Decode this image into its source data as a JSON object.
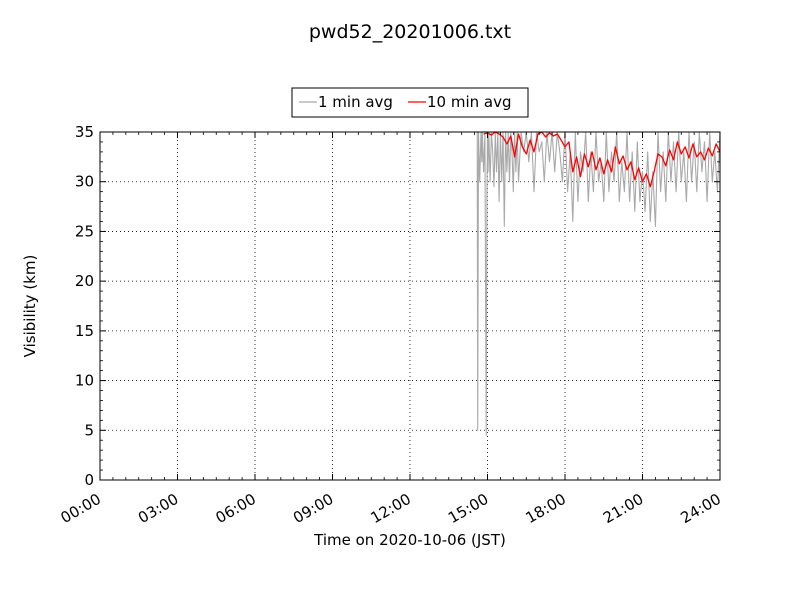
{
  "chart_data": {
    "type": "line",
    "title": "pwd52_20201006.txt",
    "xlabel": "Time on 2020-10-06 (JST)",
    "ylabel": "Visibility (km)",
    "xlim": [
      0,
      24
    ],
    "ylim": [
      0,
      35
    ],
    "xtick_values": [
      0,
      3,
      6,
      9,
      12,
      15,
      18,
      21,
      24
    ],
    "xtick_labels": [
      "00:00",
      "03:00",
      "06:00",
      "09:00",
      "12:00",
      "15:00",
      "18:00",
      "21:00",
      "24:00"
    ],
    "ytick_values": [
      0,
      5,
      10,
      15,
      20,
      25,
      30,
      35
    ],
    "ytick_labels": [
      "0",
      "5",
      "10",
      "15",
      "20",
      "25",
      "30",
      "35"
    ],
    "grid": true,
    "legend_position": "top-center",
    "series": [
      {
        "name": "1 min avg",
        "color": "#a9a9a9",
        "x": [
          14.6,
          14.62,
          14.65,
          14.7,
          14.75,
          14.78,
          14.8,
          14.85,
          14.9,
          14.95,
          14.98,
          15.0,
          15.02,
          15.05,
          15.1,
          15.15,
          15.2,
          15.25,
          15.3,
          15.35,
          15.4,
          15.45,
          15.5,
          15.55,
          15.6,
          15.65,
          15.7,
          15.75,
          15.8,
          15.85,
          15.9,
          15.95,
          16.0,
          16.05,
          16.1,
          16.15,
          16.2,
          16.3,
          16.4,
          16.5,
          16.6,
          16.7,
          16.8,
          16.9,
          17.0,
          17.1,
          17.2,
          17.3,
          17.4,
          17.5,
          17.6,
          17.7,
          17.8,
          17.9,
          18.0,
          18.1,
          18.2,
          18.3,
          18.4,
          18.5,
          18.6,
          18.7,
          18.8,
          18.9,
          19.0,
          19.1,
          19.2,
          19.3,
          19.4,
          19.5,
          19.6,
          19.7,
          19.8,
          19.9,
          20.0,
          20.1,
          20.2,
          20.3,
          20.4,
          20.5,
          20.6,
          20.7,
          20.8,
          20.9,
          21.0,
          21.1,
          21.2,
          21.3,
          21.4,
          21.5,
          21.6,
          21.7,
          21.8,
          21.9,
          22.0,
          22.1,
          22.2,
          22.3,
          22.4,
          22.5,
          22.6,
          22.7,
          22.8,
          22.9,
          23.0,
          23.1,
          23.2,
          23.3,
          23.4,
          23.5,
          23.6,
          23.7,
          23.8,
          23.9,
          24.0
        ],
        "y": [
          35,
          5,
          35,
          30,
          35,
          32,
          35,
          31,
          35,
          4.5,
          29,
          35,
          31,
          35,
          30,
          35,
          33,
          29.5,
          35,
          31,
          35,
          28,
          35,
          30,
          35,
          25.5,
          35,
          31,
          35,
          30,
          35,
          33,
          29,
          35,
          31,
          35,
          30,
          35,
          33,
          35,
          32,
          35,
          29,
          35,
          33,
          34,
          30,
          35,
          32,
          35,
          31,
          35,
          33,
          30,
          35,
          29,
          33,
          26,
          35,
          28,
          33,
          31,
          35,
          28,
          33,
          29,
          35,
          30,
          32,
          28,
          35,
          29,
          33,
          30,
          35,
          28,
          32,
          29,
          35,
          28,
          33,
          27,
          34,
          28,
          31,
          27,
          33,
          26,
          31,
          25.5,
          35,
          29,
          33,
          28,
          35,
          30,
          34,
          29,
          35,
          30,
          33,
          28,
          35,
          30,
          34,
          29,
          35,
          31,
          34,
          28,
          35,
          30,
          33,
          29,
          35
        ]
      },
      {
        "name": "10 min avg",
        "color": "#ff0000",
        "x": [
          14.85,
          15.0,
          15.15,
          15.3,
          15.45,
          15.6,
          15.75,
          15.9,
          16.05,
          16.2,
          16.35,
          16.5,
          16.65,
          16.8,
          16.95,
          17.1,
          17.25,
          17.4,
          17.55,
          17.7,
          17.85,
          18.0,
          18.15,
          18.3,
          18.45,
          18.6,
          18.75,
          18.9,
          19.05,
          19.2,
          19.35,
          19.5,
          19.65,
          19.8,
          19.95,
          20.1,
          20.25,
          20.4,
          20.55,
          20.7,
          20.85,
          21.0,
          21.15,
          21.3,
          21.45,
          21.6,
          21.75,
          21.9,
          22.05,
          22.2,
          22.35,
          22.5,
          22.65,
          22.8,
          22.95,
          23.1,
          23.25,
          23.4,
          23.55,
          23.7,
          23.85,
          24.0
        ],
        "y": [
          34.8,
          34.9,
          34.7,
          35,
          34.8,
          34.5,
          33.8,
          34.6,
          32.5,
          34.8,
          33.5,
          32.8,
          34.2,
          33.0,
          34.8,
          35,
          34.5,
          34.9,
          34.6,
          34.8,
          34.2,
          33.5,
          34.0,
          31.0,
          32.5,
          30.5,
          32.8,
          31.5,
          33.0,
          31.2,
          32.4,
          30.8,
          32.2,
          31.0,
          33.5,
          31.8,
          32.6,
          31.2,
          32.0,
          30.2,
          31.4,
          30.0,
          30.8,
          29.5,
          31.0,
          32.8,
          32.5,
          31.6,
          33.2,
          32.2,
          34.0,
          32.8,
          33.5,
          32.4,
          33.8,
          32.5,
          33.0,
          32.2,
          33.4,
          32.6,
          33.8,
          33.0
        ]
      }
    ]
  }
}
